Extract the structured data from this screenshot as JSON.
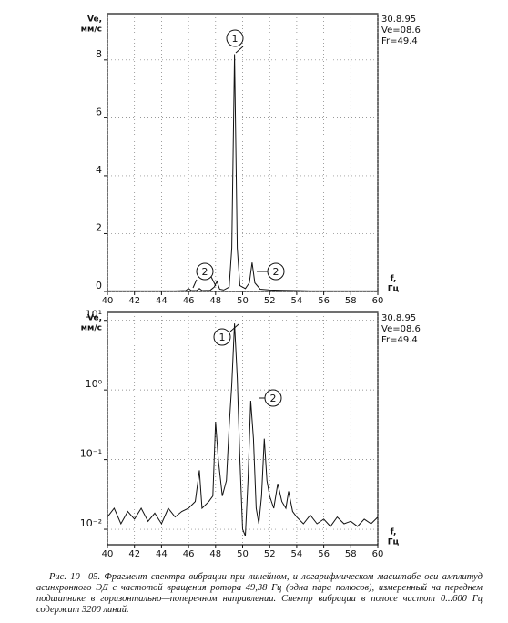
{
  "chart_data": [
    {
      "type": "line",
      "log_scale": false,
      "grid": true,
      "color": "#111111",
      "y_label": [
        "Ve,",
        "мм/с"
      ],
      "x_label": [
        "f,",
        "Гц"
      ],
      "info": [
        "30.8.95",
        "Ve=08.6",
        "Fr=49.4"
      ],
      "annotations": [
        "1",
        "2",
        "2"
      ],
      "xlim": [
        40,
        60
      ],
      "xticks": [
        40,
        42,
        44,
        46,
        48,
        50,
        52,
        54,
        56,
        58,
        60
      ],
      "ylim": [
        0,
        9.6
      ],
      "yticks": [
        0,
        2,
        4,
        6,
        8
      ],
      "x": [
        40,
        41,
        42,
        43,
        44,
        45,
        45.8,
        46,
        46.2,
        46.6,
        46.8,
        47,
        47.6,
        47.9,
        48.1,
        48.3,
        48.6,
        49.0,
        49.2,
        49.4,
        49.6,
        49.8,
        50.2,
        50.5,
        50.7,
        50.9,
        51.3,
        52,
        53,
        54,
        55,
        56,
        57,
        58,
        59,
        60
      ],
      "values": [
        0.02,
        0.02,
        0.02,
        0.02,
        0.02,
        0.02,
        0.03,
        0.1,
        0.03,
        0.03,
        0.1,
        0.03,
        0.04,
        0.15,
        0.35,
        0.08,
        0.05,
        0.15,
        1.5,
        8.2,
        1.5,
        0.2,
        0.1,
        0.3,
        1.0,
        0.3,
        0.08,
        0.05,
        0.04,
        0.03,
        0.02,
        0.02,
        0.02,
        0.02,
        0.02,
        0.02
      ]
    },
    {
      "type": "line",
      "log_scale": true,
      "grid": true,
      "color": "#111111",
      "y_label": [
        "Ve,",
        "мм/с"
      ],
      "x_label": [
        "f,",
        "Гц"
      ],
      "info": [
        "30.8.95",
        "Ve=08.6",
        "Fr=49.4"
      ],
      "annotations": [
        "1",
        "2"
      ],
      "xlim": [
        40,
        60
      ],
      "xticks": [
        40,
        42,
        44,
        46,
        48,
        50,
        52,
        54,
        56,
        58,
        60
      ],
      "ylim": [
        0.006,
        13
      ],
      "yticks": [
        {
          "value": 0.01,
          "label": "10⁻²"
        },
        {
          "value": 0.1,
          "label": "10⁻¹"
        },
        {
          "value": 1,
          "label": "10⁰"
        },
        {
          "value": 10,
          "label": "10¹"
        }
      ],
      "x": [
        40,
        40.5,
        41,
        41.5,
        42,
        42.5,
        43,
        43.5,
        44,
        44.5,
        45,
        45.5,
        46,
        46.5,
        46.8,
        47,
        47.5,
        47.8,
        48.0,
        48.2,
        48.5,
        48.8,
        49.0,
        49.2,
        49.4,
        49.6,
        49.8,
        50.0,
        50.2,
        50.4,
        50.6,
        50.8,
        51.0,
        51.2,
        51.4,
        51.6,
        51.8,
        52.0,
        52.3,
        52.6,
        52.9,
        53.2,
        53.4,
        53.7,
        54,
        54.5,
        55,
        55.5,
        56,
        56.5,
        57,
        57.5,
        58,
        58.5,
        59,
        59.5,
        60
      ],
      "values": [
        0.015,
        0.02,
        0.012,
        0.018,
        0.014,
        0.02,
        0.013,
        0.017,
        0.012,
        0.02,
        0.015,
        0.018,
        0.02,
        0.025,
        0.07,
        0.02,
        0.025,
        0.03,
        0.35,
        0.1,
        0.03,
        0.05,
        0.3,
        1.2,
        9,
        1.5,
        0.1,
        0.01,
        0.008,
        0.05,
        0.7,
        0.2,
        0.02,
        0.012,
        0.03,
        0.2,
        0.05,
        0.03,
        0.02,
        0.045,
        0.025,
        0.02,
        0.035,
        0.018,
        0.015,
        0.012,
        0.016,
        0.012,
        0.014,
        0.011,
        0.015,
        0.012,
        0.013,
        0.011,
        0.014,
        0.012,
        0.015
      ]
    }
  ],
  "caption": "Рис. 10—05. Фрагмент спектра вибрации при линейном, и логарифмическом масштабе оси амплитуд асинхронного ЭД с частотой вращения ротора 49,38 Гц (одна пара полюсов), измеренный на переднем подшипнике в горизонтально—поперечном направлении. Спектр вибрации в полосе частот 0...600 Гц содержит 3200 линий."
}
